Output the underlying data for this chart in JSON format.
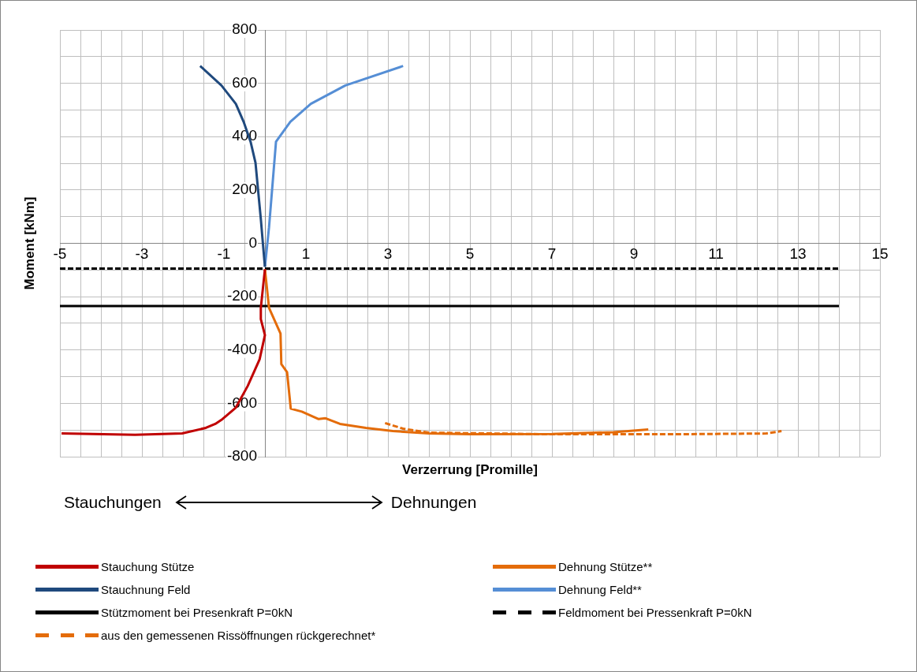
{
  "chart_data": {
    "type": "line",
    "xlabel": "Verzerrung [Promille]",
    "ylabel": "Moment [kNm]",
    "xlim": [
      -5,
      15
    ],
    "ylim": [
      -800,
      800
    ],
    "xticks": [
      -5,
      {
        "value": -4.5,
        "label": null
      },
      {
        "value": -4,
        "label": null
      },
      {
        "value": -3.5,
        "label": null
      },
      -3,
      {
        "value": -2.5,
        "label": null
      },
      {
        "value": -2,
        "label": null
      },
      {
        "value": -1.5,
        "label": null
      },
      -1,
      {
        "value": -0.5,
        "label": null
      },
      {
        "value": 0,
        "label": null
      },
      {
        "value": 0.5,
        "label": null
      },
      1,
      {
        "value": 1.5,
        "label": null
      },
      {
        "value": 2,
        "label": null
      },
      {
        "value": 2.5,
        "label": null
      },
      3,
      {
        "value": 3.5,
        "label": null
      },
      {
        "value": 4,
        "label": null
      },
      {
        "value": 4.5,
        "label": null
      },
      5,
      {
        "value": 5.5,
        "label": null
      },
      {
        "value": 6,
        "label": null
      },
      {
        "value": 6.5,
        "label": null
      },
      7,
      {
        "value": 7.5,
        "label": null
      },
      {
        "value": 8,
        "label": null
      },
      {
        "value": 8.5,
        "label": null
      },
      9,
      {
        "value": 9.5,
        "label": null
      },
      {
        "value": 10,
        "label": null
      },
      {
        "value": 10.5,
        "label": null
      },
      11,
      {
        "value": 11.5,
        "label": null
      },
      {
        "value": 12,
        "label": null
      },
      {
        "value": 12.5,
        "label": null
      },
      13,
      {
        "value": 13.5,
        "label": null
      },
      {
        "value": 14,
        "label": null
      },
      {
        "value": 14.5,
        "label": null
      },
      15
    ],
    "yticks": [
      -800,
      {
        "value": -700,
        "label": null
      },
      -600,
      {
        "value": -500,
        "label": null
      },
      -400,
      {
        "value": -300,
        "label": null
      },
      -200,
      {
        "value": -100,
        "label": null
      },
      0,
      {
        "value": 100,
        "label": null
      },
      200,
      {
        "value": 300,
        "label": null
      },
      400,
      {
        "value": 500,
        "label": null
      },
      600,
      {
        "value": 700,
        "label": null
      },
      800
    ],
    "grid": true,
    "legend": "bottom",
    "marker": "none",
    "annotations": [
      "Stauchungen",
      "Dehnungen"
    ],
    "series": [
      {
        "name": "Stauchung Stütze",
        "color": "#c00000",
        "x": [
          0,
          -0.1,
          -0.1,
          0,
          -0.13,
          -0.42,
          -0.71,
          -1.06,
          -1.21,
          -1.44,
          -2.02,
          -3.17,
          -4.96
        ],
        "values": [
          -97,
          -242,
          -284,
          -344,
          -435,
          -535,
          -616,
          -662,
          -677,
          -692,
          -713,
          -718,
          -713
        ]
      },
      {
        "name": "Dehnung Stütze**",
        "color": "#e46c0a",
        "x": [
          0,
          0.1,
          0.38,
          0.4,
          0.54,
          0.63,
          0.9,
          1.31,
          1.48,
          1.83,
          2.46,
          3.12,
          4,
          5,
          7,
          8.5,
          9.35
        ],
        "values": [
          -97,
          -242,
          -338,
          -453,
          -483,
          -620,
          -631,
          -659,
          -656,
          -677,
          -692,
          -704,
          -713,
          -716,
          -715,
          -708,
          -698
        ]
      },
      {
        "name": "Stauchnung Feld",
        "color": "#1f497d",
        "x": [
          0,
          -0.06,
          -0.1,
          -0.23,
          -0.35,
          -0.52,
          -0.71,
          -1.06,
          -1.58
        ],
        "values": [
          -88,
          18,
          91,
          302,
          381,
          456,
          523,
          592,
          665
        ]
      },
      {
        "name": "Dehnung Feld**",
        "color": "#558ed5",
        "x": [
          0,
          0.1,
          0.27,
          0.62,
          1.12,
          1.96,
          3.37
        ],
        "values": [
          -88,
          60,
          381,
          456,
          523,
          592,
          665
        ]
      },
      {
        "name": "Stützmoment bei Presenkraft P=0kN",
        "color": "#000000",
        "x": [
          -5,
          14
        ],
        "values": [
          -235,
          -235
        ]
      },
      {
        "name": "Feldmoment bei Pressenkraft P=0kN",
        "color": "#000000",
        "line_style": "dashed",
        "x": [
          -5,
          14
        ],
        "values": [
          -95,
          -95
        ]
      },
      {
        "name": "aus den gemessenen Rissöffnungen rückgerechnet*",
        "color": "#e46c0a",
        "line_style": "dashed",
        "x": [
          2.93,
          3.37,
          4,
          7,
          10,
          12.23,
          12.6
        ],
        "values": [
          -674,
          -695,
          -710,
          -716,
          -716,
          -713,
          -704
        ]
      }
    ]
  }
}
